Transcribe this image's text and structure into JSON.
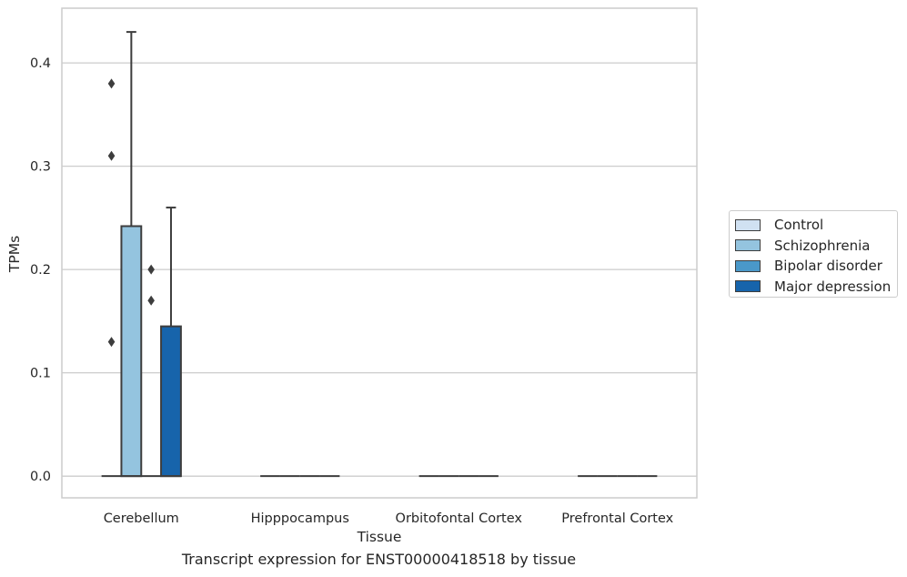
{
  "chart_data": {
    "type": "box",
    "caption": "Transcript expression for ENST00000418518 by tissue",
    "xlabel": "Tissue",
    "ylabel": "TPMs",
    "ylim": [
      -0.021,
      0.453
    ],
    "yticks": [
      0.0,
      0.1,
      0.2,
      0.3,
      0.4
    ],
    "ytick_labels": [
      "0.0",
      "0.1",
      "0.2",
      "0.3",
      "0.4"
    ],
    "grid": "horizontal",
    "legend_position": "right",
    "categories": [
      "Cerebellum",
      "Hipppocampus",
      "Orbitofontal Cortex",
      "Prefrontal Cortex"
    ],
    "series": [
      {
        "name": "Control",
        "color": "#d0e1f2",
        "boxes": [
          {
            "q1": 0,
            "median": 0,
            "q3": 0,
            "whisker_low": 0,
            "whisker_high": 0,
            "outliers": [
              0.13,
              0.31,
              0.38
            ]
          },
          {
            "q1": 0,
            "median": 0,
            "q3": 0,
            "whisker_low": 0,
            "whisker_high": 0,
            "outliers": []
          },
          {
            "q1": 0,
            "median": 0,
            "q3": 0,
            "whisker_low": 0,
            "whisker_high": 0,
            "outliers": []
          },
          {
            "q1": 0,
            "median": 0,
            "q3": 0,
            "whisker_low": 0,
            "whisker_high": 0,
            "outliers": []
          }
        ]
      },
      {
        "name": "Schizophrenia",
        "color": "#94c4df",
        "boxes": [
          {
            "q1": 0,
            "median": 0,
            "q3": 0.242,
            "whisker_low": 0,
            "whisker_high": 0.43,
            "outliers": []
          },
          {
            "q1": 0,
            "median": 0,
            "q3": 0,
            "whisker_low": 0,
            "whisker_high": 0,
            "outliers": []
          },
          {
            "q1": 0,
            "median": 0,
            "q3": 0,
            "whisker_low": 0,
            "whisker_high": 0,
            "outliers": []
          },
          {
            "q1": 0,
            "median": 0,
            "q3": 0,
            "whisker_low": 0,
            "whisker_high": 0,
            "outliers": []
          }
        ]
      },
      {
        "name": "Bipolar disorder",
        "color": "#4a98c9",
        "boxes": [
          {
            "q1": 0,
            "median": 0,
            "q3": 0,
            "whisker_low": 0,
            "whisker_high": 0,
            "outliers": [
              0.17,
              0.2
            ]
          },
          {
            "q1": 0,
            "median": 0,
            "q3": 0,
            "whisker_low": 0,
            "whisker_high": 0,
            "outliers": []
          },
          {
            "q1": 0,
            "median": 0,
            "q3": 0,
            "whisker_low": 0,
            "whisker_high": 0,
            "outliers": []
          },
          {
            "q1": 0,
            "median": 0,
            "q3": 0,
            "whisker_low": 0,
            "whisker_high": 0,
            "outliers": []
          }
        ]
      },
      {
        "name": "Major depression",
        "color": "#1764ab",
        "boxes": [
          {
            "q1": 0,
            "median": 0,
            "q3": 0.145,
            "whisker_low": 0,
            "whisker_high": 0.26,
            "outliers": []
          },
          {
            "q1": 0,
            "median": 0,
            "q3": 0,
            "whisker_low": 0,
            "whisker_high": 0,
            "outliers": []
          },
          {
            "q1": 0,
            "median": 0,
            "q3": 0,
            "whisker_low": 0,
            "whisker_high": 0,
            "outliers": []
          },
          {
            "q1": 0,
            "median": 0,
            "q3": 0,
            "whisker_low": 0,
            "whisker_high": 0,
            "outliers": []
          }
        ]
      }
    ]
  }
}
